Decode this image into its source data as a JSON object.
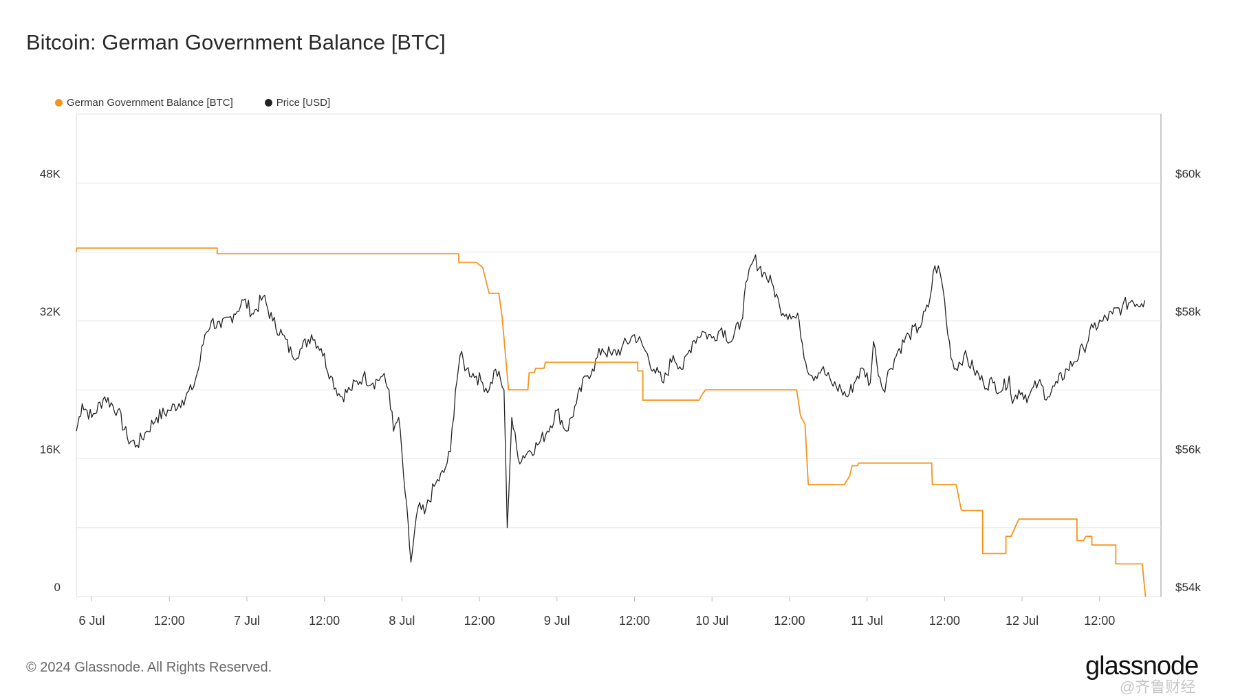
{
  "title": "Bitcoin: German Government Balance [BTC]",
  "footer": "© 2024 Glassnode. All Rights Reserved.",
  "brand": "glassnode",
  "watermark": "@齐鲁财经",
  "colors": {
    "balance": "#f7931a",
    "price": "#222222",
    "grid": "#e6e6e6",
    "axis_text": "#333333"
  },
  "chart_data": {
    "type": "line",
    "title": "Bitcoin: German Government Balance [BTC]",
    "legend": {
      "placement": "top-left"
    },
    "grid": true,
    "x_ticks": [
      "6 Jul",
      "12:00",
      "7 Jul",
      "12:00",
      "8 Jul",
      "12:00",
      "9 Jul",
      "12:00",
      "10 Jul",
      "12:00",
      "11 Jul",
      "12:00",
      "12 Jul",
      "12:00"
    ],
    "x_tick_hours": [
      0,
      12,
      24,
      36,
      48,
      60,
      72,
      84,
      96,
      108,
      120,
      132,
      144,
      156
    ],
    "x_range_hours": [
      -2.4,
      165.5
    ],
    "left_axis": {
      "ticks": [
        "0",
        "16K",
        "32K",
        "48K"
      ],
      "tick_values": [
        0,
        16000,
        32000,
        48000
      ],
      "range": [
        0,
        56000
      ]
    },
    "right_axis": {
      "ticks": [
        "$54k",
        "$56k",
        "$58k",
        "$60k"
      ],
      "tick_values": [
        54000,
        56000,
        58000,
        60000
      ],
      "range": [
        54000,
        61000
      ]
    },
    "series": [
      {
        "name": "German Government Balance [BTC]",
        "axis": "left",
        "step": true,
        "points": [
          [
            -2.4,
            40000
          ],
          [
            -2.3,
            40450
          ],
          [
            19.4,
            40450
          ],
          [
            19.4,
            39800
          ],
          [
            56.8,
            39800
          ],
          [
            56.8,
            38800
          ],
          [
            59.5,
            38800
          ],
          [
            60.5,
            38200
          ],
          [
            61.5,
            35200
          ],
          [
            63.0,
            35200
          ],
          [
            63.5,
            32500
          ],
          [
            64.5,
            24000
          ],
          [
            67.5,
            24000
          ],
          [
            67.7,
            26000
          ],
          [
            68.5,
            26000
          ],
          [
            68.7,
            26500
          ],
          [
            70,
            26500
          ],
          [
            70.2,
            27200
          ],
          [
            84.5,
            27200
          ],
          [
            84.5,
            26200
          ],
          [
            85.3,
            26200
          ],
          [
            85.3,
            22800
          ],
          [
            94,
            22800
          ],
          [
            94.5,
            23500
          ],
          [
            95,
            24000
          ],
          [
            109.1,
            24000
          ],
          [
            109.7,
            21000
          ],
          [
            110.4,
            20000
          ],
          [
            110.9,
            13000
          ],
          [
            116.5,
            13000
          ],
          [
            117.3,
            14000
          ],
          [
            117.7,
            15200
          ],
          [
            118.5,
            15200
          ],
          [
            118.7,
            15500
          ],
          [
            130,
            15500
          ],
          [
            130.1,
            13000
          ],
          [
            133.8,
            13000
          ],
          [
            134.6,
            10000
          ],
          [
            137.9,
            10000
          ],
          [
            137.9,
            5000
          ],
          [
            141.5,
            5000
          ],
          [
            141.5,
            7000
          ],
          [
            142.3,
            7000
          ],
          [
            143.2,
            8500
          ],
          [
            143.5,
            9000
          ],
          [
            152.5,
            9000
          ],
          [
            152.5,
            6500
          ],
          [
            153.5,
            6500
          ],
          [
            153.9,
            7000
          ],
          [
            154.8,
            7000
          ],
          [
            154.8,
            6000
          ],
          [
            158.5,
            6000
          ],
          [
            158.5,
            3800
          ],
          [
            162.6,
            3800
          ],
          [
            163.1,
            0
          ]
        ]
      },
      {
        "name": "Price [USD]",
        "axis": "right",
        "points": [
          [
            -2.4,
            56400
          ],
          [
            -1.5,
            56800
          ],
          [
            0,
            56600
          ],
          [
            2,
            56900
          ],
          [
            4,
            56700
          ],
          [
            5.5,
            56300
          ],
          [
            7,
            56200
          ],
          [
            8.5,
            56400
          ],
          [
            10,
            56600
          ],
          [
            12,
            56700
          ],
          [
            14,
            56850
          ],
          [
            15.5,
            57000
          ],
          [
            16.5,
            57300
          ],
          [
            17.5,
            57800
          ],
          [
            18.5,
            58000
          ],
          [
            20,
            57900
          ],
          [
            22,
            58100
          ],
          [
            23.5,
            58300
          ],
          [
            25,
            58100
          ],
          [
            26.5,
            58350
          ],
          [
            28,
            58000
          ],
          [
            29.5,
            57800
          ],
          [
            31,
            57500
          ],
          [
            32.5,
            57600
          ],
          [
            34,
            57800
          ],
          [
            35.5,
            57600
          ],
          [
            37,
            57200
          ],
          [
            38.5,
            56900
          ],
          [
            40,
            57000
          ],
          [
            42,
            57200
          ],
          [
            43.5,
            57100
          ],
          [
            45,
            57200
          ],
          [
            46,
            57000
          ],
          [
            46.7,
            56400
          ],
          [
            47.5,
            56600
          ],
          [
            48.5,
            55500
          ],
          [
            49.4,
            54500
          ],
          [
            50.5,
            55300
          ],
          [
            51.5,
            55200
          ],
          [
            53,
            55600
          ],
          [
            54.5,
            55800
          ],
          [
            55.5,
            56100
          ],
          [
            56.3,
            57000
          ],
          [
            57.0,
            57500
          ],
          [
            58.0,
            57300
          ],
          [
            59.5,
            57200
          ],
          [
            60.5,
            57100
          ],
          [
            61.5,
            57000
          ],
          [
            62.5,
            57300
          ],
          [
            63.8,
            57000
          ],
          [
            64.3,
            55000
          ],
          [
            65,
            56600
          ],
          [
            66,
            56000
          ],
          [
            67.5,
            56100
          ],
          [
            69,
            56200
          ],
          [
            70.5,
            56400
          ],
          [
            72,
            56700
          ],
          [
            73.5,
            56400
          ],
          [
            75,
            56800
          ],
          [
            76.5,
            57200
          ],
          [
            77.5,
            57300
          ],
          [
            79,
            57600
          ],
          [
            80.5,
            57500
          ],
          [
            82,
            57600
          ],
          [
            84,
            57800
          ],
          [
            85.5,
            57600
          ],
          [
            87,
            57300
          ],
          [
            88.5,
            57100
          ],
          [
            90,
            57500
          ],
          [
            91.5,
            57300
          ],
          [
            93,
            57700
          ],
          [
            94.5,
            57850
          ],
          [
            96,
            57750
          ],
          [
            97.5,
            57900
          ],
          [
            99,
            57700
          ],
          [
            100.5,
            58000
          ],
          [
            101.5,
            58600
          ],
          [
            102.5,
            58900
          ],
          [
            104,
            58700
          ],
          [
            105.5,
            58500
          ],
          [
            106.5,
            58200
          ],
          [
            108,
            58100
          ],
          [
            109.5,
            58000
          ],
          [
            110.5,
            57400
          ],
          [
            111.5,
            57200
          ],
          [
            113,
            57300
          ],
          [
            114.5,
            57100
          ],
          [
            116,
            57000
          ],
          [
            117,
            56900
          ],
          [
            118.5,
            57200
          ],
          [
            119.5,
            57300
          ],
          [
            120.5,
            57100
          ],
          [
            121,
            57700
          ],
          [
            121.5,
            57400
          ],
          [
            122.5,
            57000
          ],
          [
            123.5,
            57300
          ],
          [
            125,
            57600
          ],
          [
            126.5,
            57800
          ],
          [
            128,
            57900
          ],
          [
            129.5,
            58200
          ],
          [
            130.5,
            58800
          ],
          [
            131.3,
            58700
          ],
          [
            132,
            58300
          ],
          [
            132.5,
            57800
          ],
          [
            133.5,
            57300
          ],
          [
            135,
            57500
          ],
          [
            136.5,
            57300
          ],
          [
            138,
            57100
          ],
          [
            139.5,
            57100
          ],
          [
            141,
            57000
          ],
          [
            142,
            57200
          ],
          [
            142.5,
            56800
          ],
          [
            143.5,
            57000
          ],
          [
            145,
            56900
          ],
          [
            146.5,
            57100
          ],
          [
            148,
            56900
          ],
          [
            149.5,
            57100
          ],
          [
            151,
            57300
          ],
          [
            152,
            57400
          ],
          [
            153.5,
            57600
          ],
          [
            155,
            57900
          ],
          [
            156.5,
            58000
          ],
          [
            158,
            58100
          ],
          [
            159.5,
            58200
          ],
          [
            161,
            58300
          ],
          [
            162.5,
            58250
          ],
          [
            163,
            58300
          ]
        ]
      }
    ]
  }
}
